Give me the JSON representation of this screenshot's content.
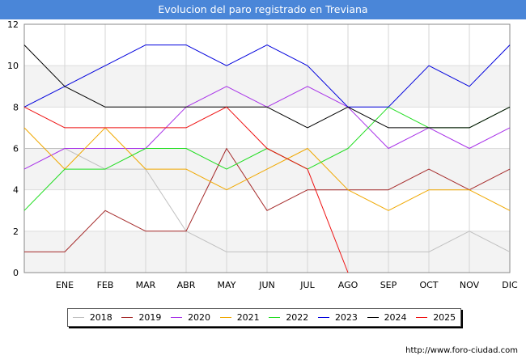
{
  "header": {
    "title": "Evolucion del paro registrado en Treviana"
  },
  "footer": {
    "url": "http://www.foro-ciudad.com"
  },
  "chart_data": {
    "type": "line",
    "title": "Evolucion del paro registrado en Treviana",
    "xlabel": "",
    "ylabel": "",
    "ylim": [
      0,
      12
    ],
    "yticks": [
      0,
      2,
      4,
      6,
      8,
      10,
      12
    ],
    "grid": true,
    "legend_position": "bottom",
    "categories": [
      "",
      "ENE",
      "FEB",
      "MAR",
      "ABR",
      "MAY",
      "JUN",
      "JUL",
      "AGO",
      "SEP",
      "OCT",
      "NOV",
      "DIC"
    ],
    "series": [
      {
        "name": "2018",
        "color": "#c0c0c0",
        "values": [
          6,
          6,
          5,
          5,
          2,
          1,
          1,
          1,
          1,
          1,
          1,
          2,
          1
        ]
      },
      {
        "name": "2019",
        "color": "#a52a2a",
        "values": [
          1,
          1,
          3,
          2,
          2,
          6,
          3,
          4,
          4,
          4,
          5,
          4,
          5
        ]
      },
      {
        "name": "2020",
        "color": "#a832e8",
        "values": [
          5,
          6,
          6,
          6,
          8,
          9,
          8,
          9,
          8,
          6,
          7,
          6,
          7
        ]
      },
      {
        "name": "2021",
        "color": "#f0a800",
        "values": [
          7,
          5,
          7,
          5,
          5,
          4,
          5,
          6,
          4,
          3,
          4,
          4,
          3
        ]
      },
      {
        "name": "2022",
        "color": "#22dd22",
        "values": [
          3,
          5,
          5,
          6,
          6,
          5,
          6,
          5,
          6,
          8,
          7,
          7,
          8
        ]
      },
      {
        "name": "2023",
        "color": "#0000dd",
        "values": [
          8,
          9,
          10,
          11,
          11,
          10,
          11,
          10,
          8,
          8,
          10,
          9,
          11
        ]
      },
      {
        "name": "2024",
        "color": "#000000",
        "values": [
          11,
          9,
          8,
          8,
          8,
          8,
          8,
          7,
          8,
          7,
          7,
          7,
          8
        ]
      },
      {
        "name": "2025",
        "color": "#ee1111",
        "values": [
          8,
          7,
          7,
          7,
          7,
          8,
          6,
          5,
          0,
          null,
          null,
          null,
          null
        ]
      }
    ]
  }
}
